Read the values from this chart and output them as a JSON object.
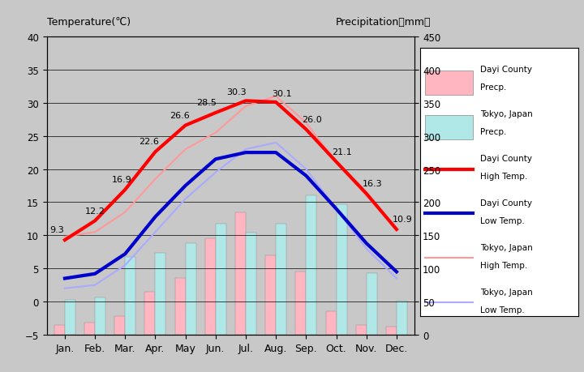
{
  "months": [
    "Jan.",
    "Feb.",
    "Mar.",
    "Apr.",
    "May",
    "Jun.",
    "Jul.",
    "Aug.",
    "Sep.",
    "Oct.",
    "Nov.",
    "Dec."
  ],
  "dayi_high_temp": [
    9.3,
    12.2,
    16.9,
    22.6,
    26.6,
    28.5,
    30.3,
    30.1,
    26.0,
    21.1,
    16.3,
    10.9
  ],
  "dayi_low_temp": [
    3.5,
    4.2,
    7.2,
    12.8,
    17.5,
    21.5,
    22.5,
    22.5,
    19.0,
    14.0,
    8.8,
    4.5
  ],
  "tokyo_high_temp": [
    9.8,
    10.5,
    13.5,
    18.5,
    23.0,
    25.5,
    29.5,
    31.0,
    27.0,
    21.0,
    16.0,
    11.0
  ],
  "tokyo_low_temp": [
    2.0,
    2.5,
    5.5,
    10.5,
    15.5,
    19.5,
    23.0,
    24.0,
    20.0,
    14.0,
    8.0,
    3.5
  ],
  "dayi_high_labels": [
    "9.3",
    "12.2",
    "16.9",
    "22.6",
    "26.6",
    "28.5",
    "30.3",
    "30.1",
    "26.0",
    "21.1",
    "16.3",
    "10.9"
  ],
  "dayi_precip_mm": [
    15,
    18,
    28,
    65,
    85,
    145,
    185,
    120,
    95,
    35,
    15,
    12
  ],
  "tokyo_precip_mm": [
    52,
    56,
    117,
    124,
    138,
    167,
    154,
    168,
    210,
    197,
    93,
    51
  ],
  "temp_ylim": [
    -5,
    40
  ],
  "precip_ylim": [
    0,
    450
  ],
  "temp_yticks": [
    -5,
    0,
    5,
    10,
    15,
    20,
    25,
    30,
    35,
    40
  ],
  "precip_yticks": [
    0,
    50,
    100,
    150,
    200,
    250,
    300,
    350,
    400,
    450
  ],
  "dayi_high_color": "#ff0000",
  "dayi_low_color": "#0000cc",
  "tokyo_high_color": "#ff9999",
  "tokyo_low_color": "#aaaaff",
  "dayi_precip_color": "#ffb6c1",
  "tokyo_precip_color": "#b0e8e8",
  "bg_color": "#c8c8c8",
  "plot_bg_color": "#bebebe",
  "title_left": "Temperature(℃)",
  "title_right": "Precipitation（mm）",
  "legend_labels": [
    "Dayi County\nPrecp.",
    "Tokyo, Japan\nPrecp.",
    "Dayi County\nHigh Temp.",
    "Dayi County\nLow Temp.",
    "Tokyo, Japan\nHigh Temp.",
    "Tokyo, Japan\nLow Temp."
  ]
}
